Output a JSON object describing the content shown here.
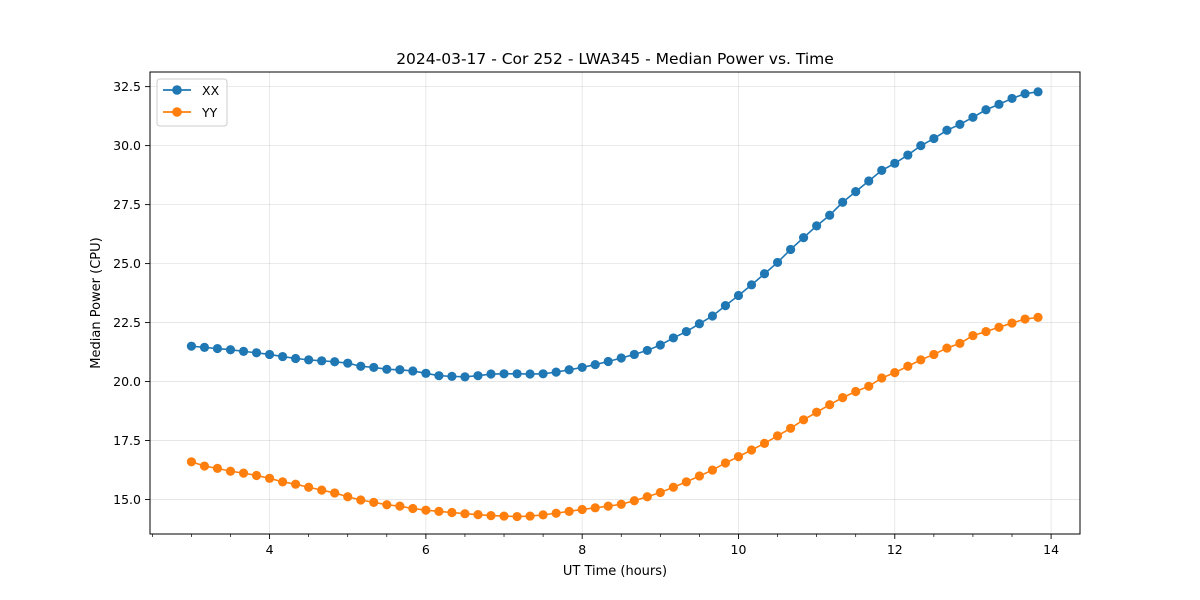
{
  "chart_data": {
    "type": "line",
    "title": "2024-03-17 - Cor 252 - LWA345 - Median Power vs. Time",
    "xlabel": "UT Time (hours)",
    "ylabel": "Median Power (CPU)",
    "xlim": [
      2.47,
      14.37
    ],
    "ylim": [
      13.54,
      33.12
    ],
    "x_ticks": [
      4,
      6,
      8,
      10,
      12,
      14
    ],
    "x_tick_labels": [
      "4",
      "6",
      "8",
      "10",
      "12",
      "14"
    ],
    "y_ticks": [
      15.0,
      17.5,
      20.0,
      22.5,
      25.0,
      27.5,
      30.0,
      32.5
    ],
    "y_tick_labels": [
      "15.0",
      "17.5",
      "20.0",
      "22.5",
      "25.0",
      "27.5",
      "30.0",
      "32.5"
    ],
    "grid": true,
    "legend_position": "top-left",
    "x": [
      3.0,
      3.167,
      3.333,
      3.5,
      3.667,
      3.833,
      4.0,
      4.167,
      4.333,
      4.5,
      4.667,
      4.833,
      5.0,
      5.167,
      5.333,
      5.5,
      5.667,
      5.833,
      6.0,
      6.167,
      6.333,
      6.5,
      6.667,
      6.833,
      7.0,
      7.167,
      7.333,
      7.5,
      7.667,
      7.833,
      8.0,
      8.167,
      8.333,
      8.5,
      8.667,
      8.833,
      9.0,
      9.167,
      9.333,
      9.5,
      9.667,
      9.833,
      10.0,
      10.167,
      10.333,
      10.5,
      10.667,
      10.833,
      11.0,
      11.167,
      11.333,
      11.5,
      11.667,
      11.833,
      12.0,
      12.167,
      12.333,
      12.5,
      12.667,
      12.833,
      13.0,
      13.167,
      13.333,
      13.5,
      13.667,
      13.833
    ],
    "series": [
      {
        "name": "XX",
        "color": "#1f77b4",
        "values": [
          21.5,
          21.45,
          21.4,
          21.35,
          21.28,
          21.22,
          21.15,
          21.06,
          20.98,
          20.92,
          20.88,
          20.84,
          20.78,
          20.65,
          20.6,
          20.52,
          20.5,
          20.45,
          20.35,
          20.25,
          20.22,
          20.2,
          20.25,
          20.32,
          20.33,
          20.33,
          20.32,
          20.33,
          20.4,
          20.5,
          20.6,
          20.72,
          20.85,
          21.0,
          21.15,
          21.32,
          21.55,
          21.85,
          22.12,
          22.45,
          22.78,
          23.22,
          23.65,
          24.1,
          24.57,
          25.05,
          25.6,
          26.1,
          26.6,
          27.05,
          27.6,
          28.05,
          28.5,
          28.95,
          29.25,
          29.6,
          30.0,
          30.3,
          30.65,
          30.9,
          31.2,
          31.52,
          31.75,
          32.0,
          32.2,
          32.28
        ]
      },
      {
        "name": "YY",
        "color": "#ff7f0e",
        "values": [
          16.6,
          16.42,
          16.32,
          16.2,
          16.12,
          16.02,
          15.9,
          15.75,
          15.65,
          15.52,
          15.4,
          15.28,
          15.12,
          14.98,
          14.88,
          14.78,
          14.72,
          14.62,
          14.55,
          14.5,
          14.45,
          14.4,
          14.36,
          14.32,
          14.3,
          14.28,
          14.3,
          14.35,
          14.42,
          14.5,
          14.58,
          14.65,
          14.72,
          14.8,
          14.95,
          15.12,
          15.3,
          15.52,
          15.75,
          16.0,
          16.25,
          16.55,
          16.82,
          17.1,
          17.38,
          17.7,
          18.02,
          18.38,
          18.7,
          19.02,
          19.32,
          19.58,
          19.8,
          20.15,
          20.38,
          20.65,
          20.92,
          21.15,
          21.42,
          21.62,
          21.95,
          22.12,
          22.3,
          22.48,
          22.65,
          22.72
        ]
      }
    ]
  }
}
